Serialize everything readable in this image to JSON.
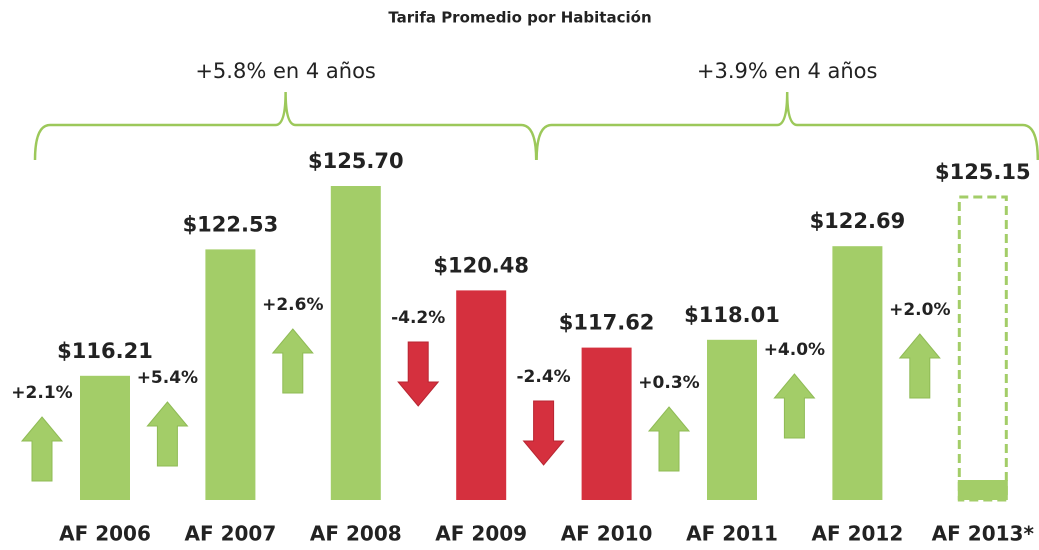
{
  "chart_data": {
    "type": "bar",
    "title": "Tarifa Promedio por Habitación",
    "categories": [
      "AF 2006",
      "AF 2007",
      "AF 2008",
      "AF 2009",
      "AF 2010",
      "AF 2011",
      "AF 2012",
      "AF 2013*"
    ],
    "values": [
      116.21,
      122.53,
      125.7,
      120.48,
      117.62,
      118.01,
      122.69,
      125.15
    ],
    "value_labels": [
      "$116.21",
      "$122.53",
      "$125.70",
      "$120.48",
      "$117.62",
      "$118.01",
      "$122.69",
      "$125.15"
    ],
    "colors": [
      "#a3cd68",
      "#a3cd68",
      "#a3cd68",
      "#d5303e",
      "#d5303e",
      "#a3cd68",
      "#a3cd68",
      "#a3cd68"
    ],
    "dashed": [
      false,
      false,
      false,
      false,
      false,
      false,
      false,
      true
    ],
    "changes": [
      2.1,
      5.4,
      2.6,
      -4.2,
      -2.4,
      0.3,
      4.0,
      2.0
    ],
    "change_labels": [
      "+2.1%",
      "+5.4%",
      "+2.6%",
      "-4.2%",
      "-2.4%",
      "+0.3%",
      "+4.0%",
      "+2.0%"
    ],
    "annotations": [
      "+5.8% en 4 años",
      "+3.9% en 4 años"
    ],
    "ylim": [
      110,
      130
    ]
  }
}
